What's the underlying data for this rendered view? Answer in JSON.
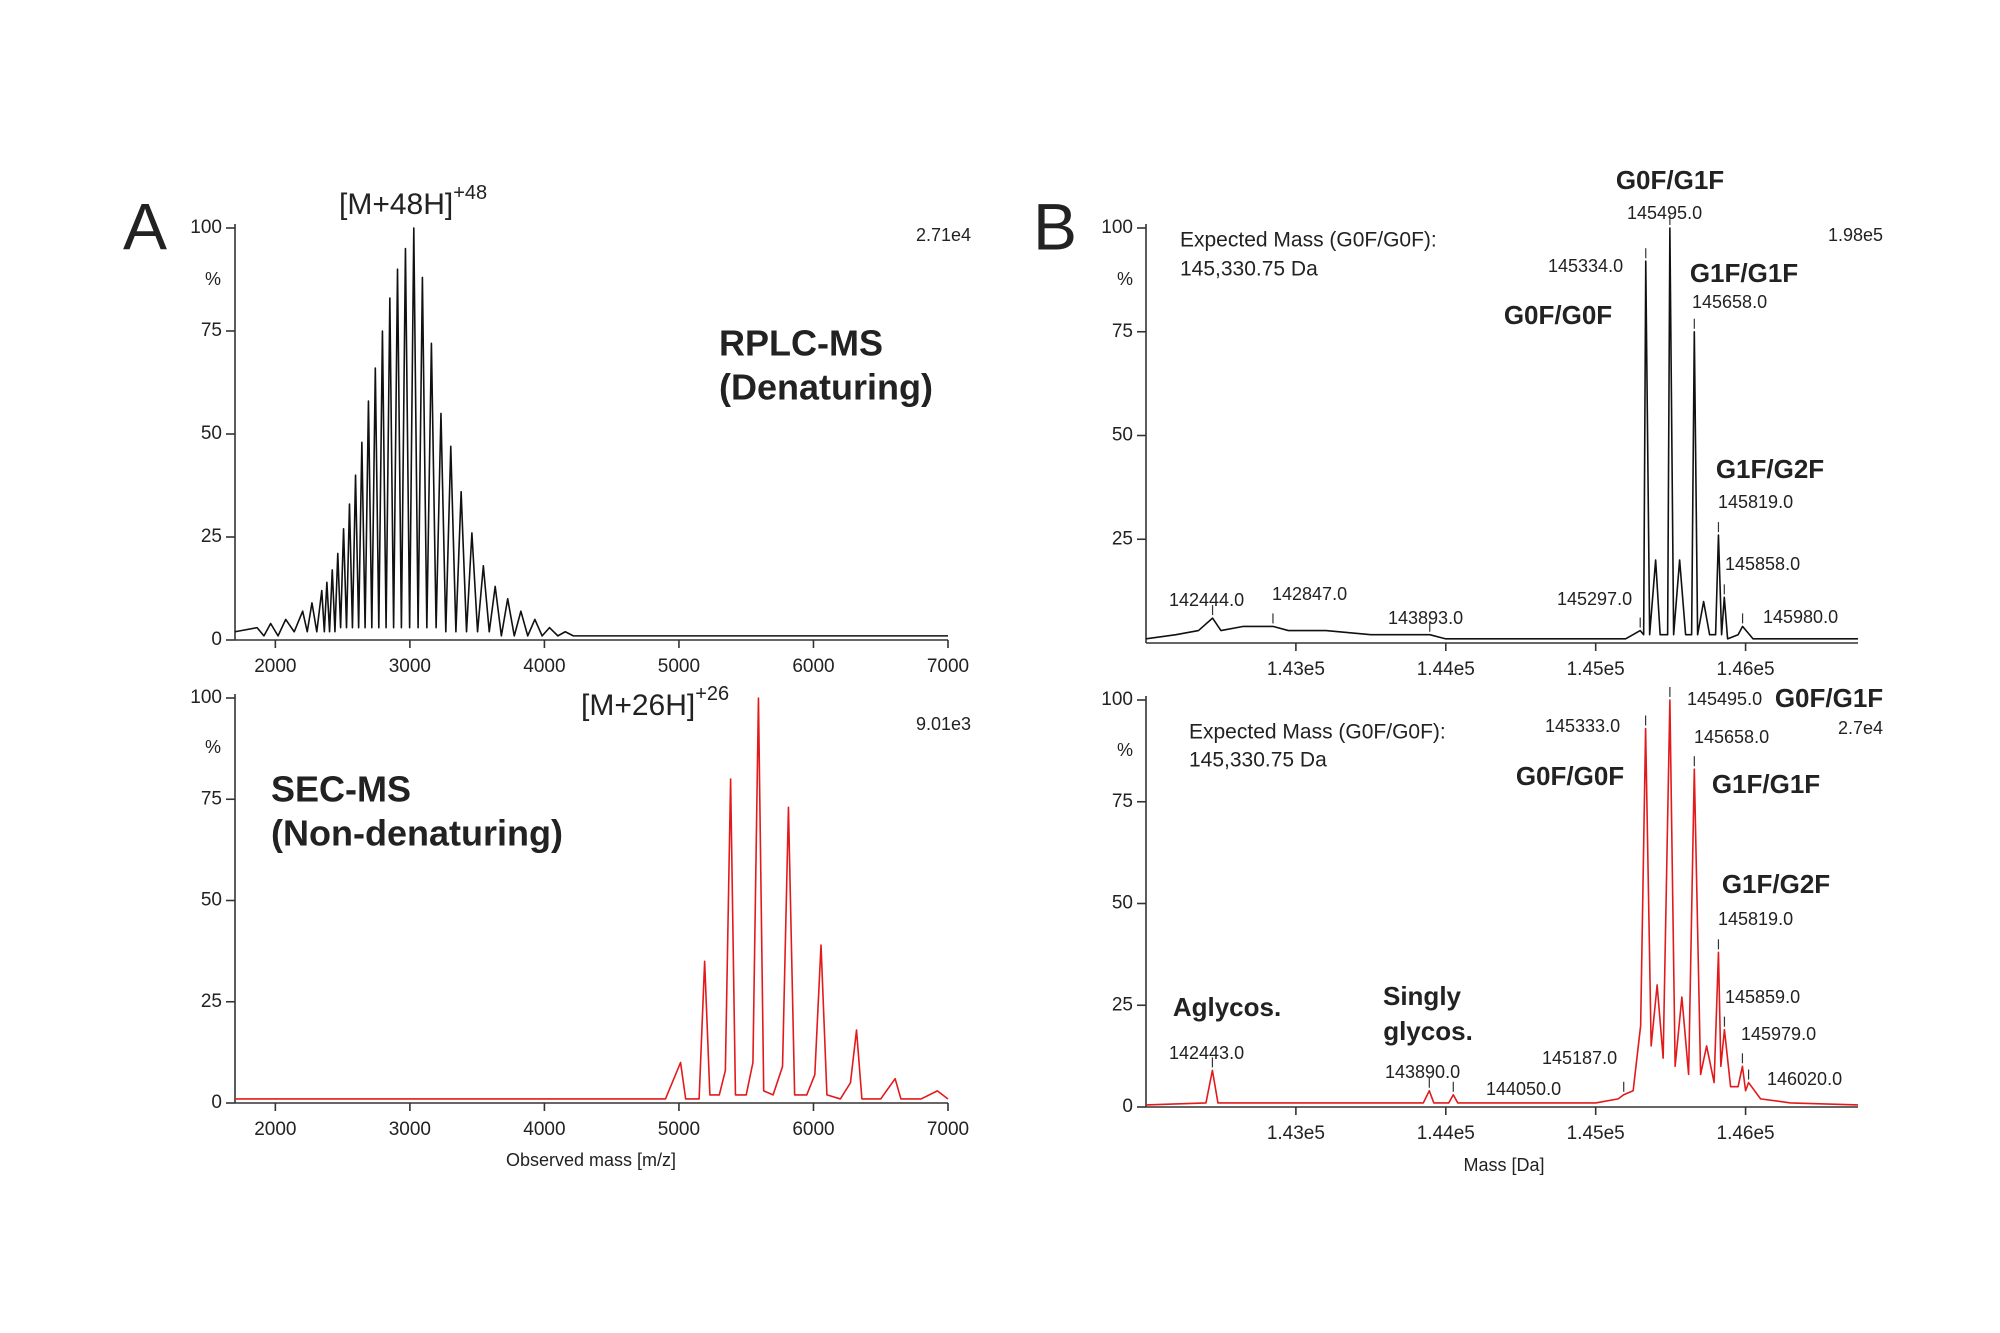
{
  "chart_data": [
    {
      "type": "line",
      "panel_label": "A",
      "ion_label": "[M+48H]",
      "ion_charge": "+48",
      "intensity": "2.71e4",
      "y_unit": "%",
      "annotations": [
        "RPLC-MS",
        "(Denaturing)"
      ],
      "annotation_color": "#222222",
      "color": "#111111",
      "x": [
        1700,
        1864,
        1915,
        1965,
        2020,
        2077,
        2140,
        2203,
        2237,
        2272,
        2308,
        2345,
        2364,
        2383,
        2403,
        2423,
        2443,
        2464,
        2485,
        2507,
        2529,
        2551,
        2573,
        2596,
        2619,
        2643,
        2667,
        2692,
        2717,
        2743,
        2769,
        2796,
        2823,
        2851,
        2879,
        2908,
        2937,
        2967,
        2998,
        3029,
        3061,
        3093,
        3126,
        3160,
        3195,
        3231,
        3267,
        3304,
        3342,
        3381,
        3421,
        3461,
        3503,
        3546,
        3590,
        3634,
        3680,
        3727,
        3776,
        3825,
        3876,
        3929,
        3983,
        4038,
        4100,
        4155,
        4215,
        4275,
        4600,
        5000,
        5500,
        6000,
        6500,
        7000
      ],
      "values": [
        2,
        3,
        1,
        4,
        1,
        5,
        2,
        7,
        2,
        9,
        2,
        12,
        2,
        14,
        2,
        17,
        2,
        21,
        3,
        27,
        3,
        33,
        3,
        40,
        3,
        48,
        3,
        58,
        3,
        66,
        3,
        75,
        3,
        83,
        3,
        90,
        3,
        95,
        3,
        100,
        3,
        88,
        3,
        72,
        3,
        55,
        2,
        47,
        2,
        36,
        2,
        26,
        2,
        18,
        2,
        13,
        1,
        10,
        1,
        7,
        1,
        5,
        1,
        3,
        1,
        2,
        1,
        1,
        1,
        1,
        1,
        1,
        1,
        1
      ],
      "xlim": [
        1700,
        7000
      ],
      "xticks": [
        2000,
        3000,
        4000,
        5000,
        6000,
        7000
      ],
      "ylim": [
        0,
        100
      ],
      "yticks": [
        0,
        25,
        50,
        75,
        100
      ]
    },
    {
      "type": "line",
      "ion_label": "[M+26H]",
      "ion_charge": "+26",
      "intensity": "9.01e3",
      "y_unit": "%",
      "annotations": [
        "SEC-MS",
        "(Non-denaturing)"
      ],
      "annotation_color": "#222222",
      "color": "#e31a1c",
      "xlabel": "Observed mass [m/z]",
      "x": [
        1700,
        2000,
        2500,
        3000,
        3500,
        4000,
        4500,
        4900,
        5012,
        5050,
        5150,
        5191,
        5230,
        5300,
        5345,
        5384,
        5420,
        5500,
        5550,
        5591,
        5630,
        5700,
        5770,
        5814,
        5860,
        5950,
        6010,
        6056,
        6100,
        6200,
        6275,
        6320,
        6360,
        6500,
        6607,
        6650,
        6800,
        6921,
        7000
      ],
      "values": [
        1,
        1,
        1,
        1,
        1,
        1,
        1,
        1,
        10,
        1,
        1,
        35,
        2,
        2,
        8,
        80,
        2,
        2,
        10,
        100,
        3,
        2,
        9,
        73,
        2,
        2,
        7,
        39,
        2,
        1,
        5,
        18,
        1,
        1,
        6,
        1,
        1,
        3,
        1
      ],
      "xlim": [
        1700,
        7000
      ],
      "xticks": [
        2000,
        3000,
        4000,
        5000,
        6000,
        7000
      ],
      "ylim": [
        0,
        100
      ],
      "yticks": [
        0,
        25,
        50,
        75,
        100
      ]
    },
    {
      "type": "line",
      "panel_label": "B",
      "intensity": "1.98e5",
      "y_unit": "%",
      "note_lines": [
        "Expected Mass (G0F/G0F):",
        "145,330.75 Da"
      ],
      "annotations": [
        "G0F/G1F",
        "G1F/G1F",
        "G0F/G0F",
        "G1F/G2F"
      ],
      "annotation_color": "#2f4f9f",
      "color": "#111111",
      "x": [
        142000,
        142200,
        142350,
        142444,
        142500,
        142650,
        142847,
        142950,
        143200,
        143500,
        143893,
        144000,
        144500,
        145000,
        145200,
        145297,
        145320,
        145334,
        145360,
        145400,
        145430,
        145480,
        145495,
        145520,
        145560,
        145600,
        145640,
        145658,
        145680,
        145720,
        145760,
        145800,
        145819,
        145840,
        145858,
        145880,
        145950,
        145980,
        146050,
        146300,
        146750
      ],
      "values": [
        1,
        2,
        3,
        6,
        3,
        4,
        4,
        3,
        3,
        2,
        2,
        1,
        1,
        1,
        1,
        3,
        2,
        92,
        2,
        20,
        2,
        2,
        100,
        2,
        20,
        2,
        2,
        75,
        2,
        10,
        2,
        2,
        26,
        2,
        11,
        1,
        2,
        4,
        1,
        1,
        1
      ],
      "peak_labels": [
        {
          "x": 142444,
          "label": "142444.0"
        },
        {
          "x": 142847,
          "label": "142847.0"
        },
        {
          "x": 143893,
          "label": "143893.0"
        },
        {
          "x": 145297,
          "label": "145297.0"
        },
        {
          "x": 145334,
          "label": "145334.0"
        },
        {
          "x": 145495,
          "label": "145495.0"
        },
        {
          "x": 145658,
          "label": "145658.0"
        },
        {
          "x": 145819,
          "label": "145819.0"
        },
        {
          "x": 145858,
          "label": "145858.0"
        },
        {
          "x": 145980,
          "label": "145980.0"
        }
      ],
      "xlim": [
        142000,
        146750
      ],
      "xticks": [
        {
          "value": 143000,
          "label": "1.43e5"
        },
        {
          "value": 144000,
          "label": "1.44e5"
        },
        {
          "value": 145000,
          "label": "1.45e5"
        },
        {
          "value": 146000,
          "label": "1.46e5"
        }
      ],
      "ylim": [
        0,
        100
      ],
      "yticks": [
        25,
        50,
        75,
        100
      ]
    },
    {
      "type": "line",
      "intensity": "2.7e4",
      "y_unit": "%",
      "note_lines": [
        "Expected Mass (G0F/G0F):",
        "145,330.75 Da"
      ],
      "annotations": [
        "G0F/G1F",
        "G0F/G0F",
        "G1F/G1F",
        "G1F/G2F",
        "Aglycos.",
        "Singly",
        "glycos."
      ],
      "annotation_color": "#2f4f9f",
      "color": "#e31a1c",
      "xlabel": "Mass [Da]",
      "x": [
        142000,
        142400,
        142443,
        142480,
        143000,
        143500,
        143850,
        143890,
        143920,
        144020,
        144050,
        144080,
        144600,
        145000,
        145150,
        145187,
        145250,
        145300,
        145333,
        145370,
        145410,
        145450,
        145495,
        145530,
        145575,
        145620,
        145658,
        145700,
        145740,
        145790,
        145819,
        145835,
        145859,
        145900,
        145950,
        145979,
        146000,
        146020,
        146100,
        146300,
        146750
      ],
      "values": [
        0.5,
        1,
        9,
        1,
        1,
        1,
        1,
        4,
        1,
        1,
        3,
        1,
        1,
        1,
        2,
        3,
        4,
        20,
        93,
        15,
        30,
        12,
        100,
        10,
        27,
        8,
        83,
        8,
        15,
        6,
        38,
        10,
        19,
        5,
        5,
        10,
        4,
        6,
        2,
        1,
        0.5
      ],
      "peak_labels": [
        {
          "x": 142443,
          "label": "142443.0"
        },
        {
          "x": 143890,
          "label": "143890.0"
        },
        {
          "x": 144050,
          "label": "144050.0"
        },
        {
          "x": 145187,
          "label": "145187.0"
        },
        {
          "x": 145333,
          "label": "145333.0"
        },
        {
          "x": 145495,
          "label": "145495.0"
        },
        {
          "x": 145658,
          "label": "145658.0"
        },
        {
          "x": 145819,
          "label": "145819.0"
        },
        {
          "x": 145859,
          "label": "145859.0"
        },
        {
          "x": 145979,
          "label": "145979.0"
        },
        {
          "x": 146020,
          "label": "146020.0"
        }
      ],
      "xlim": [
        142000,
        146750
      ],
      "xticks": [
        {
          "value": 143000,
          "label": "1.43e5"
        },
        {
          "value": 144000,
          "label": "1.44e5"
        },
        {
          "value": 145000,
          "label": "1.45e5"
        },
        {
          "value": 146000,
          "label": "1.46e5"
        }
      ],
      "ylim": [
        0,
        100
      ],
      "yticks": [
        0,
        25,
        50,
        75,
        100
      ]
    }
  ]
}
